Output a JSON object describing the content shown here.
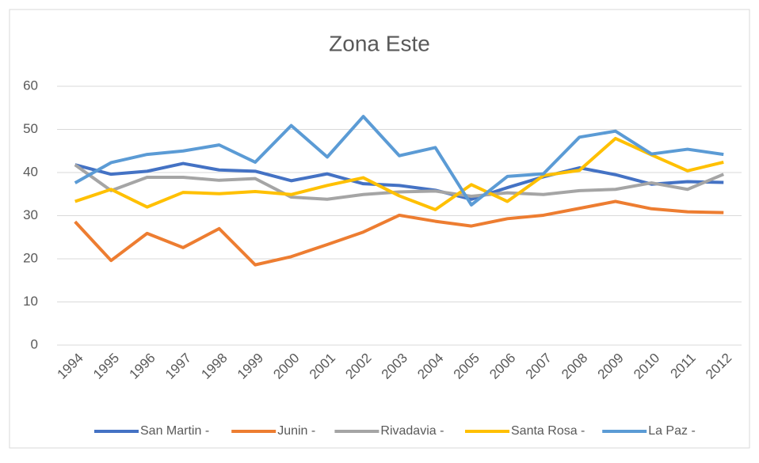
{
  "chart_data": {
    "type": "line",
    "title": "Zona Este",
    "categories": [
      "1994",
      "1995",
      "1996",
      "1997",
      "1998",
      "1999",
      "2000",
      "2001",
      "2002",
      "2003",
      "2004",
      "2005",
      "2006",
      "2007",
      "2008",
      "2009",
      "2010",
      "2011",
      "2012"
    ],
    "series": [
      {
        "name": "San Martin -",
        "color": "#4472c4",
        "values": [
          41.8,
          39.6,
          40.3,
          42.1,
          40.6,
          40.3,
          38.1,
          39.7,
          37.4,
          37.0,
          35.9,
          33.8,
          36.5,
          39.0,
          41.1,
          39.5,
          37.3,
          37.9,
          37.7
        ]
      },
      {
        "name": "Junin -",
        "color": "#ed7d31",
        "values": [
          28.6,
          19.6,
          25.9,
          22.6,
          27.0,
          18.6,
          20.5,
          23.3,
          26.2,
          30.1,
          28.7,
          27.6,
          29.3,
          30.1,
          31.7,
          33.3,
          31.6,
          30.9,
          30.7
        ]
      },
      {
        "name": "Rivadavia -",
        "color": "#a5a5a5",
        "values": [
          41.8,
          35.8,
          38.9,
          38.9,
          38.2,
          38.6,
          34.3,
          33.8,
          34.9,
          35.5,
          35.7,
          34.5,
          35.3,
          34.9,
          35.8,
          36.1,
          37.6,
          36.1,
          39.6
        ]
      },
      {
        "name": "Santa Rosa -",
        "color": "#ffc000",
        "values": [
          33.3,
          36.1,
          32.0,
          35.4,
          35.1,
          35.6,
          34.9,
          37.0,
          38.8,
          34.6,
          31.4,
          37.2,
          33.3,
          39.3,
          40.5,
          47.9,
          44.1,
          40.4,
          42.4
        ]
      },
      {
        "name": "La Paz -",
        "color": "#5b9bd5",
        "values": [
          37.6,
          42.3,
          44.2,
          45.0,
          46.4,
          42.4,
          50.9,
          43.6,
          53.0,
          43.9,
          45.8,
          32.5,
          39.1,
          39.7,
          48.2,
          49.6,
          44.3,
          45.4,
          44.2
        ]
      }
    ],
    "ylim": [
      0,
      60
    ],
    "yticks": [
      0,
      10,
      20,
      30,
      40,
      50,
      60
    ],
    "grid": true,
    "legend": "bottom"
  }
}
